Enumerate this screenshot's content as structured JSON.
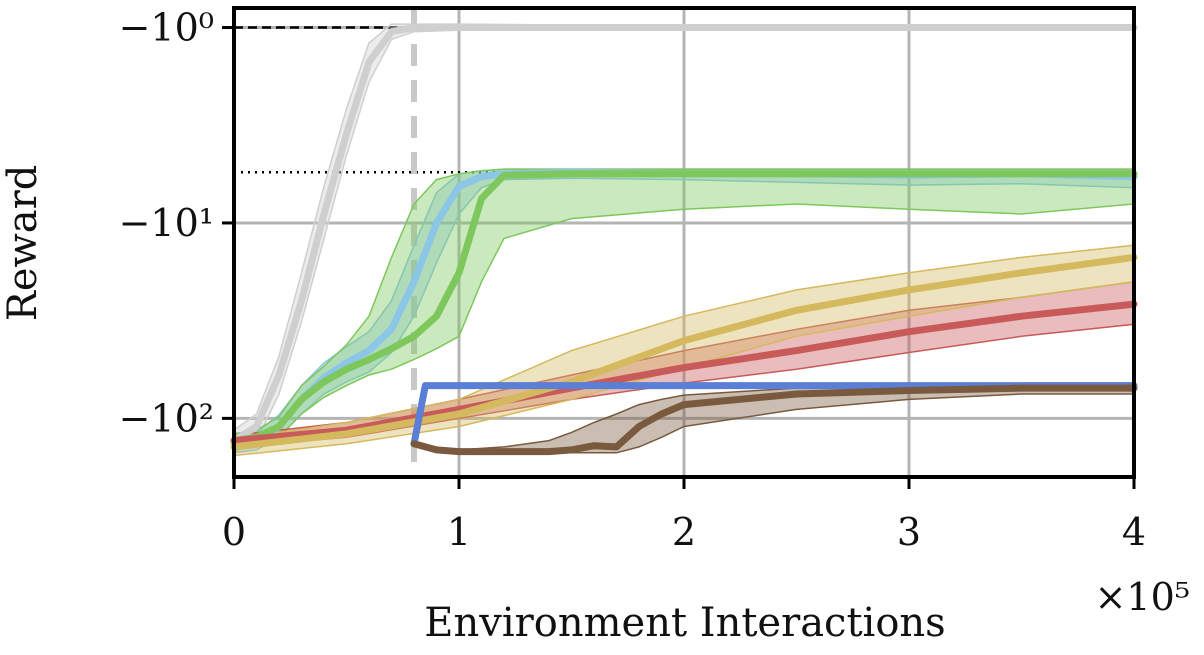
{
  "chart_data": {
    "type": "line",
    "xlabel": "Environment Interactions",
    "ylabel": "Reward",
    "x_exponent_label": "×10⁵",
    "xlim": [
      0,
      4
    ],
    "ylim_symlog_rank": [
      -0.1,
      2.3
    ],
    "y_scale": "symlog",
    "grid": true,
    "x_ticks": [
      {
        "value": 0,
        "label": "0"
      },
      {
        "value": 1,
        "label": "1"
      },
      {
        "value": 2,
        "label": "2"
      },
      {
        "value": 3,
        "label": "3"
      },
      {
        "value": 4,
        "label": "4"
      }
    ],
    "y_ticks": [
      {
        "value": -1,
        "label": "−10⁰"
      },
      {
        "value": -10,
        "label": "−10¹"
      },
      {
        "value": -100,
        "label": "−10²"
      }
    ],
    "reference_lines": [
      {
        "kind": "horizontal",
        "y": -1,
        "style": "dashed",
        "color": "#000000"
      },
      {
        "kind": "horizontal",
        "y": -5.5,
        "style": "dotted",
        "color": "#000000"
      },
      {
        "kind": "vertical",
        "x": 0.8,
        "style": "dashed",
        "color": "#c8c8c8"
      }
    ],
    "series": [
      {
        "color": "#cfcfcf",
        "x": [
          0,
          0.1,
          0.2,
          0.3,
          0.4,
          0.5,
          0.6,
          0.7,
          0.8,
          1.0,
          1.5,
          2.0,
          2.5,
          3.0,
          3.5,
          4.0
        ],
        "y": [
          -130,
          -110,
          -60,
          -25,
          -9,
          -3.5,
          -1.5,
          -1.05,
          -1.0,
          -1.0,
          -1.0,
          -1.0,
          -1.0,
          -1.0,
          -1.0,
          -1.0
        ],
        "lower": [
          -150,
          -130,
          -75,
          -32,
          -12,
          -4.5,
          -1.9,
          -1.15,
          -1.05,
          -1.03,
          -1.03,
          -1.02,
          -1.03,
          -1.03,
          -1.02,
          -1.03
        ],
        "upper": [
          -115,
          -95,
          -48,
          -18,
          -6.5,
          -2.6,
          -1.2,
          -0.96,
          -0.96,
          -0.96,
          -0.97,
          -0.97,
          -0.97,
          -0.97,
          -0.97,
          -0.97
        ]
      },
      {
        "color": "#8cc6e6",
        "x": [
          0,
          0.1,
          0.2,
          0.3,
          0.4,
          0.5,
          0.6,
          0.7,
          0.8,
          0.9,
          1.0,
          1.1,
          1.2,
          1.5,
          2.0,
          2.5,
          3.0,
          3.5,
          4.0
        ],
        "y": [
          -135,
          -130,
          -110,
          -80,
          -62,
          -52,
          -45,
          -35,
          -20,
          -10,
          -6.5,
          -5.8,
          -5.6,
          -5.5,
          -5.6,
          -5.6,
          -5.7,
          -5.6,
          -5.8
        ],
        "lower": [
          -150,
          -145,
          -125,
          -95,
          -75,
          -65,
          -58,
          -46,
          -30,
          -16,
          -9,
          -6.6,
          -6.0,
          -5.9,
          -6.0,
          -6.2,
          -6.4,
          -6.3,
          -6.6
        ],
        "upper": [
          -125,
          -118,
          -96,
          -68,
          -52,
          -43,
          -36,
          -25,
          -13,
          -7,
          -5.6,
          -5.4,
          -5.3,
          -5.3,
          -5.3,
          -5.3,
          -5.3,
          -5.3,
          -5.3
        ]
      },
      {
        "color": "#7ec75c",
        "x": [
          0,
          0.1,
          0.2,
          0.3,
          0.4,
          0.5,
          0.6,
          0.7,
          0.8,
          0.9,
          1.0,
          1.1,
          1.2,
          1.5,
          2.0,
          2.5,
          3.0,
          3.5,
          4.0
        ],
        "y": [
          -130,
          -125,
          -110,
          -80,
          -65,
          -56,
          -50,
          -44,
          -38,
          -30,
          -18,
          -7.5,
          -5.7,
          -5.6,
          -5.6,
          -5.6,
          -5.6,
          -5.6,
          -5.6
        ],
        "lower": [
          -145,
          -140,
          -125,
          -95,
          -78,
          -68,
          -60,
          -56,
          -50,
          -44,
          -38,
          -20,
          -12,
          -9.5,
          -8.5,
          -8.0,
          -8.5,
          -9.0,
          -8.0
        ],
        "upper": [
          -120,
          -115,
          -98,
          -68,
          -54,
          -42,
          -30,
          -15,
          -8,
          -6,
          -5.6,
          -5.4,
          -5.3,
          -5.3,
          -5.3,
          -5.3,
          -5.3,
          -5.3,
          -5.3
        ]
      },
      {
        "color": "#c95a5a",
        "x": [
          0,
          0.5,
          1.0,
          1.5,
          2.0,
          2.5,
          3.0,
          3.5,
          4.0
        ],
        "y": [
          -130,
          -115,
          -90,
          -70,
          -55,
          -45,
          -36,
          -30,
          -26
        ],
        "lower": [
          -140,
          -125,
          -100,
          -80,
          -66,
          -56,
          -46,
          -38,
          -33
        ],
        "upper": [
          -122,
          -105,
          -80,
          -60,
          -45,
          -35,
          -28,
          -24,
          -20
        ]
      },
      {
        "color": "#d4b95e",
        "x": [
          0,
          0.5,
          1.0,
          1.5,
          2.0,
          2.5,
          3.0,
          3.5,
          4.0
        ],
        "y": [
          -140,
          -120,
          -95,
          -65,
          -40,
          -28,
          -22,
          -18,
          -15
        ],
        "lower": [
          -155,
          -135,
          -110,
          -80,
          -55,
          -38,
          -30,
          -24,
          -20
        ],
        "upper": [
          -128,
          -105,
          -80,
          -45,
          -30,
          -22,
          -18,
          -15,
          -13
        ]
      },
      {
        "color": "#5b7fd6",
        "x": [
          0.8,
          0.85,
          1.0,
          1.5,
          2.0,
          2.5,
          3.0,
          3.5,
          4.0
        ],
        "y": [
          -135,
          -68,
          -68,
          -68,
          -68,
          -68,
          -68,
          -68,
          -68
        ],
        "lower": null,
        "upper": null
      },
      {
        "color": "#7a5a3e",
        "x": [
          0.8,
          0.9,
          1.0,
          1.2,
          1.4,
          1.5,
          1.6,
          1.7,
          1.8,
          1.9,
          2.0,
          2.5,
          3.0,
          3.5,
          4.0
        ],
        "y": [
          -135,
          -145,
          -148,
          -148,
          -148,
          -145,
          -138,
          -140,
          -110,
          -95,
          -85,
          -75,
          -72,
          -70,
          -70
        ],
        "lower": [
          -135,
          -145,
          -150,
          -150,
          -150,
          -150,
          -150,
          -150,
          -140,
          -125,
          -110,
          -90,
          -80,
          -75,
          -75
        ],
        "upper": [
          -135,
          -145,
          -145,
          -140,
          -130,
          -118,
          -105,
          -95,
          -85,
          -80,
          -76,
          -70,
          -68,
          -66,
          -66
        ]
      }
    ]
  }
}
